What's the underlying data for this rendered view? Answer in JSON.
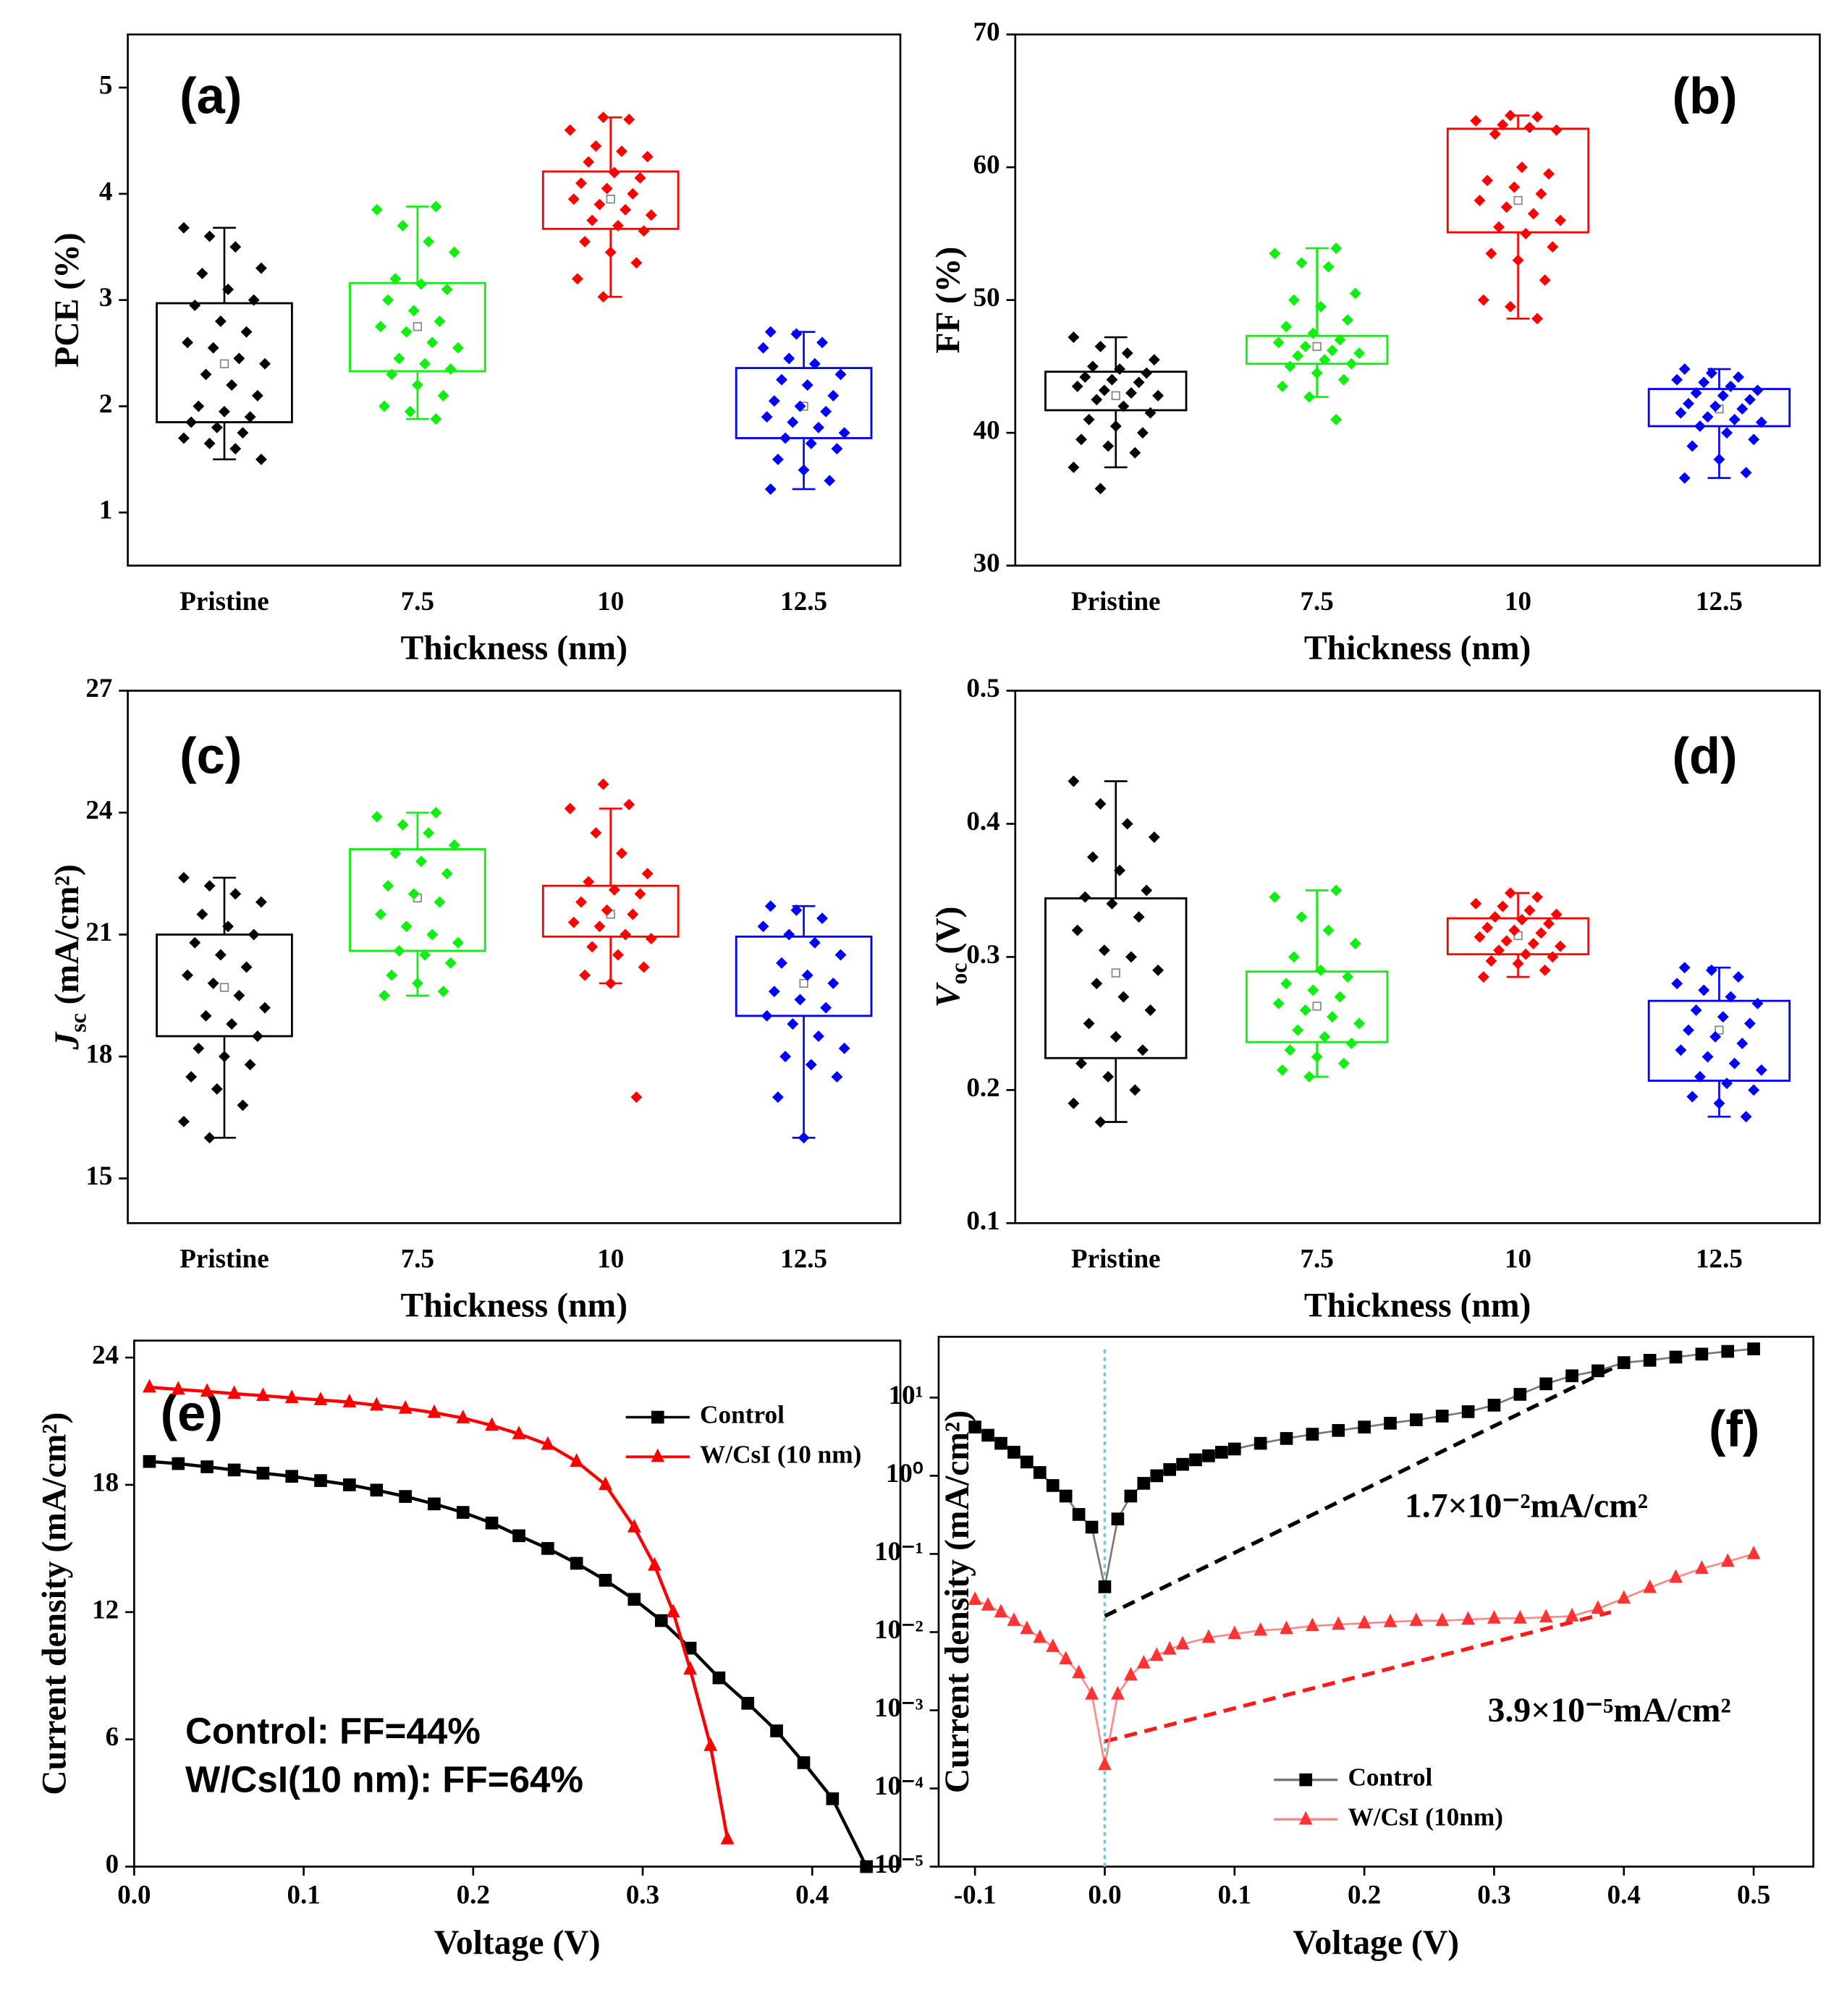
{
  "chart_data": [
    {
      "type": "box",
      "annotation": "(a)",
      "ylabel": "PCE (%)",
      "xlabel": "Thickness (nm)",
      "categories": [
        "Pristine",
        "7.5",
        "10",
        "12.5"
      ],
      "ylim": [
        0.5,
        5.5
      ],
      "yticks": [
        1,
        2,
        3,
        4,
        5
      ],
      "boxes": [
        {
          "color": "#000000",
          "q1": 1.85,
          "q3": 2.97,
          "whisker_low": 1.5,
          "whisker_high": 3.68,
          "mean": 2.4,
          "values": [
            3.68,
            3.6,
            3.5,
            3.3,
            3.25,
            3.1,
            3.0,
            2.95,
            2.8,
            2.7,
            2.6,
            2.55,
            2.45,
            2.4,
            2.3,
            2.2,
            2.1,
            2.0,
            1.95,
            1.9,
            1.85,
            1.8,
            1.75,
            1.7,
            1.65,
            1.6,
            1.5
          ]
        },
        {
          "color": "#11ee11",
          "q1": 2.33,
          "q3": 3.16,
          "whisker_low": 1.88,
          "whisker_high": 3.88,
          "mean": 2.75,
          "values": [
            3.88,
            3.85,
            3.7,
            3.55,
            3.45,
            3.2,
            3.15,
            3.1,
            3.0,
            2.9,
            2.8,
            2.75,
            2.7,
            2.6,
            2.55,
            2.45,
            2.4,
            2.35,
            2.3,
            2.2,
            2.1,
            2.0,
            1.95,
            1.88
          ]
        },
        {
          "color": "#ff0000",
          "q1": 3.67,
          "q3": 4.21,
          "whisker_low": 3.03,
          "whisker_high": 4.72,
          "mean": 3.95,
          "values": [
            4.72,
            4.7,
            4.6,
            4.45,
            4.4,
            4.35,
            4.3,
            4.2,
            4.15,
            4.1,
            4.05,
            4.0,
            3.95,
            3.9,
            3.85,
            3.8,
            3.75,
            3.7,
            3.65,
            3.55,
            3.45,
            3.35,
            3.2,
            3.03
          ]
        },
        {
          "color": "#0000ff",
          "q1": 1.7,
          "q3": 2.36,
          "whisker_low": 1.22,
          "whisker_high": 2.7,
          "mean": 2.0,
          "values": [
            2.7,
            2.68,
            2.6,
            2.55,
            2.45,
            2.4,
            2.3,
            2.25,
            2.2,
            2.1,
            2.05,
            2.0,
            1.95,
            1.9,
            1.85,
            1.8,
            1.75,
            1.7,
            1.65,
            1.6,
            1.5,
            1.4,
            1.3,
            1.22
          ]
        }
      ]
    },
    {
      "type": "box",
      "annotation": "(b)",
      "ylabel": "FF (%)",
      "xlabel": "Thickness (nm)",
      "categories": [
        "Pristine",
        "7.5",
        "10",
        "12.5"
      ],
      "ylim": [
        30,
        70
      ],
      "yticks": [
        30,
        40,
        50,
        60,
        70
      ],
      "boxes": [
        {
          "color": "#000000",
          "q1": 41.7,
          "q3": 44.6,
          "whisker_low": 37.4,
          "whisker_high": 47.2,
          "mean": 42.8,
          "values": [
            47.2,
            46.5,
            46,
            45.5,
            45,
            44.8,
            44.5,
            44.2,
            44,
            43.8,
            43.5,
            43.2,
            43,
            42.8,
            42.5,
            42,
            41.5,
            41,
            40.5,
            40,
            39.5,
            39,
            38.5,
            37.4,
            35.8
          ]
        },
        {
          "color": "#11ee11",
          "q1": 45.2,
          "q3": 47.3,
          "whisker_low": 42.7,
          "whisker_high": 53.9,
          "mean": 46.5,
          "values": [
            53.9,
            53.5,
            52.8,
            52.5,
            50.5,
            50,
            49.5,
            48.5,
            48,
            47.5,
            47,
            46.8,
            46.5,
            46.2,
            46,
            45.8,
            45.5,
            45.2,
            45,
            44.5,
            44,
            43.5,
            42.7,
            41
          ]
        },
        {
          "color": "#ff0000",
          "q1": 55.1,
          "q3": 62.9,
          "whisker_low": 48.6,
          "whisker_high": 63.9,
          "mean": 57.5,
          "values": [
            63.9,
            63.8,
            63.5,
            63.2,
            63,
            62.8,
            62.5,
            60,
            59.5,
            59,
            58.5,
            58,
            57.5,
            57,
            56.5,
            56,
            55.5,
            55,
            54,
            53.5,
            53,
            51.5,
            50,
            49.5,
            48.6
          ]
        },
        {
          "color": "#0000ff",
          "q1": 40.5,
          "q3": 43.3,
          "whisker_low": 36.6,
          "whisker_high": 44.8,
          "mean": 41.8,
          "values": [
            44.8,
            44.5,
            44.2,
            44,
            43.8,
            43.5,
            43.2,
            43,
            42.8,
            42.5,
            42.2,
            42,
            41.8,
            41.5,
            41.2,
            41,
            40.8,
            40.5,
            40,
            39.5,
            39,
            38,
            37,
            36.6
          ]
        }
      ]
    },
    {
      "type": "box",
      "annotation": "(c)",
      "ylabel": [
        "J",
        "sc",
        " (mA/cm²)"
      ],
      "xlabel": "Thickness (nm)",
      "categories": [
        "Pristine",
        "7.5",
        "10",
        "12.5"
      ],
      "ylim": [
        13.9,
        27
      ],
      "yticks": [
        15,
        18,
        21,
        24,
        27
      ],
      "boxes": [
        {
          "color": "#000000",
          "q1": 18.5,
          "q3": 21.0,
          "whisker_low": 16.0,
          "whisker_high": 22.4,
          "mean": 19.7,
          "values": [
            22.4,
            22.2,
            22,
            21.8,
            21.5,
            21.2,
            21,
            20.8,
            20.5,
            20.2,
            20,
            19.8,
            19.5,
            19.2,
            19,
            18.8,
            18.5,
            18.2,
            18,
            17.8,
            17.5,
            17.2,
            16.8,
            16.4,
            16
          ]
        },
        {
          "color": "#11ee11",
          "q1": 20.6,
          "q3": 23.1,
          "whisker_low": 19.5,
          "whisker_high": 24.0,
          "mean": 21.9,
          "values": [
            24,
            23.9,
            23.7,
            23.5,
            23.2,
            23,
            22.8,
            22.5,
            22.2,
            22,
            21.8,
            21.5,
            21.2,
            21,
            20.8,
            20.6,
            20.5,
            20.3,
            20,
            19.8,
            19.6,
            19.5
          ]
        },
        {
          "color": "#ff0000",
          "q1": 20.95,
          "q3": 22.2,
          "whisker_low": 19.8,
          "whisker_high": 24.1,
          "mean": 21.5,
          "values": [
            24.7,
            24.2,
            24.1,
            23.5,
            23,
            22.5,
            22.3,
            22.1,
            22,
            21.8,
            21.6,
            21.5,
            21.3,
            21.2,
            21,
            20.9,
            20.7,
            20.5,
            20.2,
            20,
            19.8,
            17
          ]
        },
        {
          "color": "#0000ff",
          "q1": 19.0,
          "q3": 20.95,
          "whisker_low": 16.0,
          "whisker_high": 21.7,
          "mean": 19.8,
          "values": [
            21.7,
            21.6,
            21.4,
            21.2,
            21,
            20.8,
            20.5,
            20.3,
            20,
            19.8,
            19.6,
            19.4,
            19.2,
            19,
            18.8,
            18.5,
            18.2,
            18,
            17.8,
            17.5,
            17,
            16
          ]
        }
      ]
    },
    {
      "type": "box",
      "annotation": "(d)",
      "ylabel": [
        "V",
        "oc",
        " (V)"
      ],
      "xlabel": "Thickness (nm)",
      "categories": [
        "Pristine",
        "7.5",
        "10",
        "12.5"
      ],
      "ylim": [
        0.1,
        0.5
      ],
      "yticks": [
        0.1,
        0.2,
        0.3,
        0.4,
        0.5
      ],
      "boxes": [
        {
          "color": "#000000",
          "q1": 0.224,
          "q3": 0.344,
          "whisker_low": 0.176,
          "whisker_high": 0.432,
          "mean": 0.288,
          "values": [
            0.432,
            0.415,
            0.4,
            0.39,
            0.375,
            0.365,
            0.35,
            0.345,
            0.34,
            0.33,
            0.32,
            0.305,
            0.3,
            0.29,
            0.28,
            0.27,
            0.26,
            0.25,
            0.24,
            0.23,
            0.22,
            0.21,
            0.2,
            0.19,
            0.176
          ]
        },
        {
          "color": "#11ee11",
          "q1": 0.236,
          "q3": 0.289,
          "whisker_low": 0.21,
          "whisker_high": 0.35,
          "mean": 0.263,
          "values": [
            0.35,
            0.345,
            0.33,
            0.32,
            0.31,
            0.3,
            0.29,
            0.285,
            0.28,
            0.275,
            0.27,
            0.265,
            0.26,
            0.255,
            0.25,
            0.245,
            0.24,
            0.235,
            0.23,
            0.225,
            0.22,
            0.215,
            0.21
          ]
        },
        {
          "color": "#ff0000",
          "q1": 0.302,
          "q3": 0.329,
          "whisker_low": 0.285,
          "whisker_high": 0.348,
          "mean": 0.316,
          "values": [
            0.348,
            0.345,
            0.34,
            0.338,
            0.335,
            0.332,
            0.33,
            0.328,
            0.325,
            0.322,
            0.32,
            0.318,
            0.315,
            0.312,
            0.31,
            0.308,
            0.305,
            0.302,
            0.3,
            0.297,
            0.295,
            0.29,
            0.285
          ]
        },
        {
          "color": "#0000ff",
          "q1": 0.207,
          "q3": 0.267,
          "whisker_low": 0.18,
          "whisker_high": 0.292,
          "mean": 0.245,
          "values": [
            0.292,
            0.29,
            0.285,
            0.28,
            0.275,
            0.27,
            0.265,
            0.26,
            0.255,
            0.25,
            0.245,
            0.24,
            0.235,
            0.23,
            0.225,
            0.22,
            0.215,
            0.21,
            0.205,
            0.2,
            0.195,
            0.19,
            0.18
          ]
        }
      ]
    },
    {
      "type": "line",
      "annotation": "(e)",
      "ylabel": "Current density (mA/cm²)",
      "xlabel": "Voltage (V)",
      "xlim": [
        0,
        0.452
      ],
      "xticks": [
        {
          "value": 0,
          "label": "0.0"
        },
        0.1,
        0.2,
        0.3,
        0.4
      ],
      "ylim": [
        0,
        24.8
      ],
      "yticks": [
        0,
        6,
        12,
        18,
        24
      ],
      "legend": "upper right",
      "notes": [
        {
          "text": "Control: FF=44%",
          "color": "#000000"
        },
        {
          "text": "W/CsI(10 nm): FF=64%",
          "color": "#ff1a1a"
        }
      ],
      "series": [
        {
          "name": "Control",
          "color": "#000000",
          "marker": "square",
          "x": [
            0.009,
            0.026,
            0.043,
            0.059,
            0.076,
            0.093,
            0.11,
            0.127,
            0.143,
            0.16,
            0.177,
            0.194,
            0.211,
            0.227,
            0.244,
            0.261,
            0.278,
            0.295,
            0.311,
            0.328,
            0.345,
            0.362,
            0.379,
            0.395,
            0.412,
            0.432
          ],
          "values": [
            19.1,
            19.0,
            18.85,
            18.7,
            18.55,
            18.4,
            18.2,
            18.0,
            17.75,
            17.45,
            17.1,
            16.7,
            16.2,
            15.6,
            15.0,
            14.3,
            13.5,
            12.6,
            11.6,
            10.3,
            8.9,
            7.7,
            6.4,
            4.9,
            3.2,
            0
          ]
        },
        {
          "name": "W/CsI (10 nm)",
          "color": "#ff0000",
          "marker": "triangle",
          "x": [
            0.009,
            0.026,
            0.043,
            0.059,
            0.076,
            0.093,
            0.11,
            0.127,
            0.143,
            0.16,
            0.177,
            0.194,
            0.211,
            0.227,
            0.244,
            0.261,
            0.278,
            0.295,
            0.307,
            0.318,
            0.328,
            0.34,
            0.35
          ],
          "values": [
            22.6,
            22.5,
            22.4,
            22.3,
            22.2,
            22.1,
            22.0,
            21.9,
            21.75,
            21.6,
            21.4,
            21.15,
            20.8,
            20.4,
            19.9,
            19.1,
            18.0,
            16.0,
            14.2,
            12.0,
            9.3,
            5.7,
            1.3
          ]
        }
      ]
    },
    {
      "type": "line",
      "annotation": "(f)",
      "ylabel": "Current density (mA/cm²)",
      "xlabel": "Voltage (V)",
      "log_y": true,
      "xlim": [
        -0.128,
        0.546
      ],
      "xticks": [
        -0.1,
        {
          "value": 0,
          "label": "0.0"
        },
        0.1,
        0.2,
        0.3,
        0.4,
        0.5
      ],
      "ylim": [
        1e-05,
        60
      ],
      "yticks": [
        {
          "value": 1e-05,
          "label": "10⁻⁵"
        },
        {
          "value": 0.0001,
          "label": "10⁻⁴"
        },
        {
          "value": 0.001,
          "label": "10⁻³"
        },
        {
          "value": 0.01,
          "label": "10⁻²"
        },
        {
          "value": 0.1,
          "label": "10⁻¹"
        },
        {
          "value": 1,
          "label": "10⁰"
        },
        {
          "value": 10,
          "label": "10¹"
        }
      ],
      "legend": "lower center",
      "notes": [
        {
          "text": "1.7×10⁻²mA/cm²",
          "color": "#000000"
        },
        {
          "text": "3.9×10⁻⁵mA/cm²",
          "color": "#ff1a1a"
        }
      ],
      "vline": {
        "x": 0,
        "color": "#66ccee"
      },
      "guides": [
        {
          "color": "#000000",
          "x": [
            0,
            0.4
          ],
          "values": [
            0.016,
            28
          ]
        },
        {
          "color": "#ff1a1a",
          "x": [
            0,
            0.39
          ],
          "values": [
            0.0004,
            0.018
          ]
        }
      ],
      "series": [
        {
          "name": "Control",
          "color": "#000000",
          "marker": "square",
          "x": [
            -0.1,
            -0.09,
            -0.08,
            -0.07,
            -0.06,
            -0.05,
            -0.04,
            -0.03,
            -0.02,
            -0.01,
            0,
            0.01,
            0.02,
            0.03,
            0.04,
            0.05,
            0.06,
            0.07,
            0.08,
            0.09,
            0.1,
            0.12,
            0.14,
            0.16,
            0.18,
            0.2,
            0.22,
            0.24,
            0.26,
            0.28,
            0.3,
            0.32,
            0.34,
            0.36,
            0.38,
            0.4,
            0.42,
            0.44,
            0.46,
            0.48,
            0.5
          ],
          "values": [
            4.2,
            3.3,
            2.6,
            2.0,
            1.5,
            1.1,
            0.75,
            0.55,
            0.32,
            0.22,
            0.038,
            0.28,
            0.55,
            0.8,
            1.0,
            1.2,
            1.4,
            1.6,
            1.8,
            2.0,
            2.2,
            2.6,
            3.0,
            3.4,
            3.8,
            4.2,
            4.7,
            5.2,
            5.8,
            6.6,
            8.0,
            11,
            15,
            19,
            22,
            28,
            30,
            33,
            36,
            39,
            42
          ]
        },
        {
          "name": "W/CsI (10nm)",
          "color": "#ff3333",
          "marker": "triangle",
          "x": [
            -0.1,
            -0.09,
            -0.08,
            -0.07,
            -0.06,
            -0.05,
            -0.04,
            -0.03,
            -0.02,
            -0.01,
            0,
            0.01,
            0.02,
            0.03,
            0.04,
            0.05,
            0.06,
            0.08,
            0.1,
            0.12,
            0.14,
            0.16,
            0.18,
            0.2,
            0.22,
            0.24,
            0.26,
            0.28,
            0.3,
            0.32,
            0.34,
            0.36,
            0.38,
            0.4,
            0.42,
            0.44,
            0.46,
            0.48,
            0.5
          ],
          "values": [
            0.026,
            0.022,
            0.018,
            0.014,
            0.011,
            0.0085,
            0.0065,
            0.0045,
            0.003,
            0.0016,
            0.0002,
            0.0016,
            0.0028,
            0.004,
            0.005,
            0.006,
            0.007,
            0.0085,
            0.0095,
            0.0105,
            0.011,
            0.012,
            0.0125,
            0.013,
            0.0135,
            0.014,
            0.014,
            0.0145,
            0.015,
            0.015,
            0.0155,
            0.016,
            0.02,
            0.027,
            0.037,
            0.05,
            0.065,
            0.08,
            0.1
          ]
        }
      ]
    }
  ]
}
